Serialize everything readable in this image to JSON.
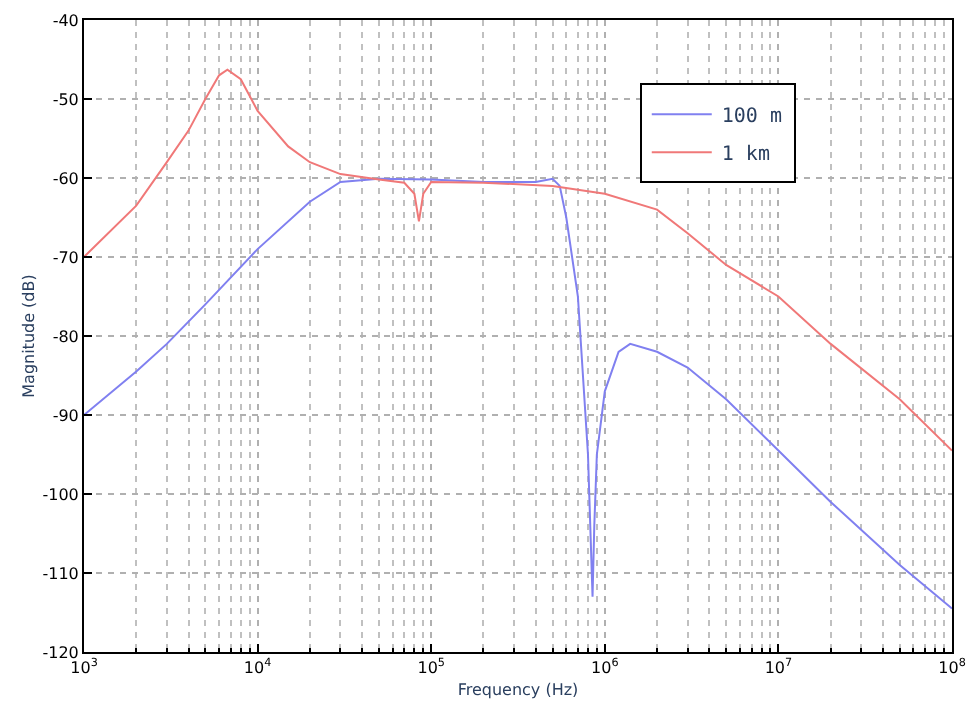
{
  "chart_data": {
    "type": "line",
    "xlabel": "Frequency (Hz)",
    "ylabel": "Magnitude (dB)",
    "log": "x",
    "grid": true,
    "legend": "top right",
    "line_style": "solid",
    "marker": "none",
    "xlim": [
      1000,
      100000000
    ],
    "xticks": [
      {
        "value": 1000,
        "label": "10$^{3}$"
      },
      {
        "value": 10000,
        "label": "10$^{4}$"
      },
      {
        "value": 100000,
        "label": "10$^{5}$"
      },
      {
        "value": 1000000,
        "label": "10$^{6}$"
      },
      {
        "value": 10000000,
        "label": "10$^{7}$"
      },
      {
        "value": 100000000,
        "label": "10$^{8}$"
      }
    ],
    "ylim": [
      -120,
      -40
    ],
    "yticks": [
      -120,
      -110,
      -100,
      -90,
      -80,
      -70,
      -60,
      -50,
      -40
    ],
    "series": [
      {
        "name": "100 m",
        "color": "#8080f0",
        "x": [
          1000,
          2000,
          3000,
          5000,
          10000,
          20000,
          30000,
          50000,
          100000,
          200000,
          400000,
          500000,
          550000,
          600000,
          700000,
          800000,
          850000,
          870000,
          900000,
          1000000,
          1200000,
          1400000,
          2000000,
          3000000,
          5000000,
          10000000,
          20000000,
          50000000,
          100000000
        ],
        "values": [
          -90,
          -84.5,
          -81,
          -76,
          -69,
          -63,
          -60.5,
          -60.1,
          -60.2,
          -60.5,
          -60.5,
          -60.1,
          -61,
          -65,
          -75,
          -95,
          -113,
          -104,
          -95,
          -87,
          -82,
          -81,
          -82,
          -84,
          -88,
          -94.5,
          -101,
          -109,
          -114.5
        ]
      },
      {
        "name": "1 km",
        "color": "#f07878",
        "x": [
          1000,
          2000,
          3000,
          4000,
          5000,
          6000,
          6700,
          8000,
          10000,
          15000,
          20000,
          30000,
          50000,
          70000,
          80000,
          85000,
          90000,
          100000,
          200000,
          500000,
          1000000,
          2000000,
          3000000,
          5000000,
          10000000,
          20000000,
          50000000,
          100000000
        ],
        "values": [
          -70,
          -63.5,
          -58,
          -54,
          -50,
          -47,
          -46.3,
          -47.5,
          -51.5,
          -56,
          -58,
          -59.5,
          -60.2,
          -60.6,
          -62,
          -65.5,
          -62,
          -60.5,
          -60.6,
          -61,
          -62,
          -64,
          -67,
          -71,
          -75,
          -81,
          -88,
          -94.5
        ]
      }
    ]
  }
}
